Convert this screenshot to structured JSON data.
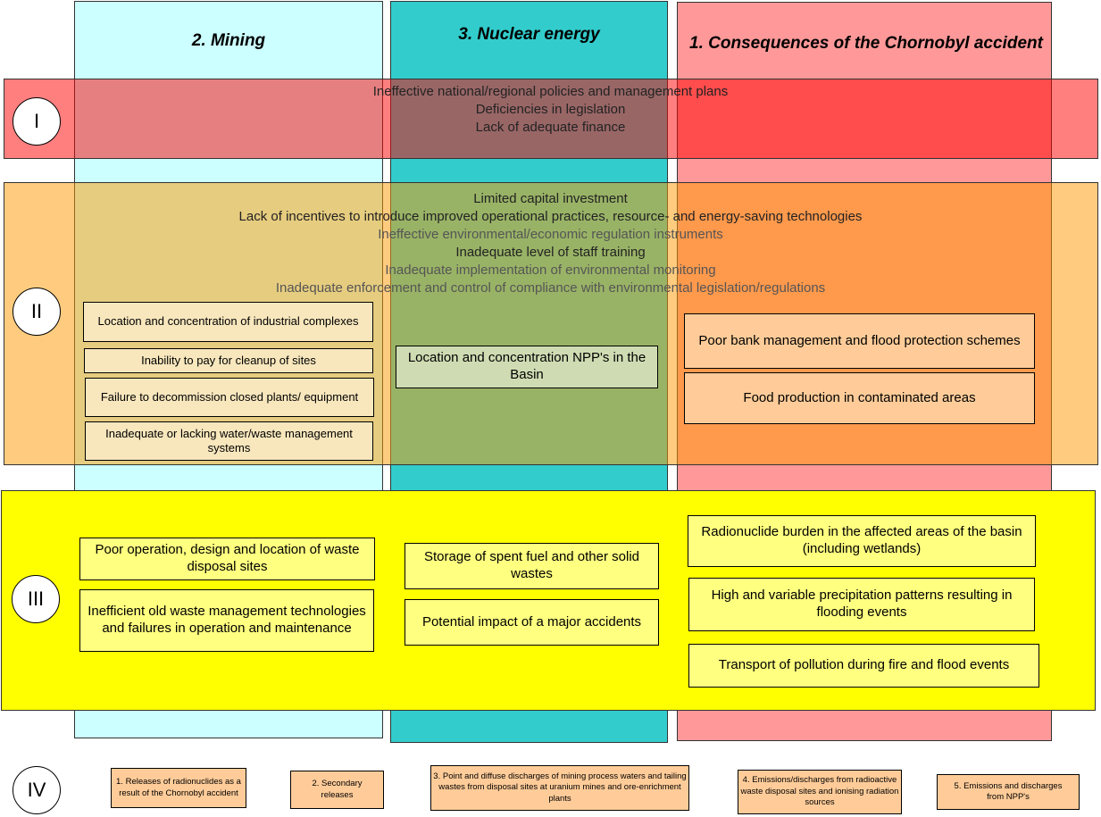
{
  "columns": [
    {
      "title": "2. Mining",
      "color": "#ccffff"
    },
    {
      "title": "3. Nuclear energy",
      "color": "#33cccc"
    },
    {
      "title": "1. Consequences of the Chornobyl accident",
      "color": "#ff9999"
    }
  ],
  "levels": {
    "I": "I",
    "II": "II",
    "III": "III",
    "IV": "IV"
  },
  "band_I": {
    "lines": [
      "Ineffective national/regional policies and management plans",
      "Deficiencies in legislation",
      "Lack of adequate finance"
    ]
  },
  "band_II": {
    "lines": [
      "Limited capital investment",
      "Lack of incentives to introduce improved operational practices, resource- and energy-saving technologies",
      "Ineffective environmental/economic regulation instruments",
      "Inadequate level of staff training",
      "Inadequate implementation of environmental monitoring",
      "Inadequate enforcement and control of compliance with environmental legislation/regulations"
    ],
    "mining": [
      "Location and concentration of industrial complexes",
      "Inability to pay for cleanup of sites",
      "Failure to decommission closed plants/ equipment",
      "Inadequate or lacking water/waste management systems"
    ],
    "nuclear": [
      "Location and concentration NPP's in the Basin"
    ],
    "chornobyl": [
      "Poor bank management and flood protection schemes",
      "Food production in contaminated areas"
    ]
  },
  "band_III": {
    "mining": [
      "Poor operation, design and location of waste disposal sites",
      "Inefficient old waste management technologies and failures in operation and maintenance"
    ],
    "nuclear": [
      "Storage of spent fuel and other solid wastes",
      "Potential impact of a major accidents"
    ],
    "chornobyl": [
      "Radionuclide burden in the affected areas of the basin (including wetlands)",
      "High and variable precipitation patterns resulting in flooding events",
      "Transport of pollution during fire and flood events"
    ]
  },
  "band_IV": [
    "1. Releases of radionuclides as a result of the Chornobyl accident",
    "2. Secondary releases",
    "3. Point and diffuse discharges of mining process waters and tailing wastes from disposal sites at uranium mines and ore-enrichment plants",
    "4. Emissions/discharges from radioactive waste disposal sites and ionising radiation sources",
    "5. Emissions and discharges from NPP's"
  ]
}
